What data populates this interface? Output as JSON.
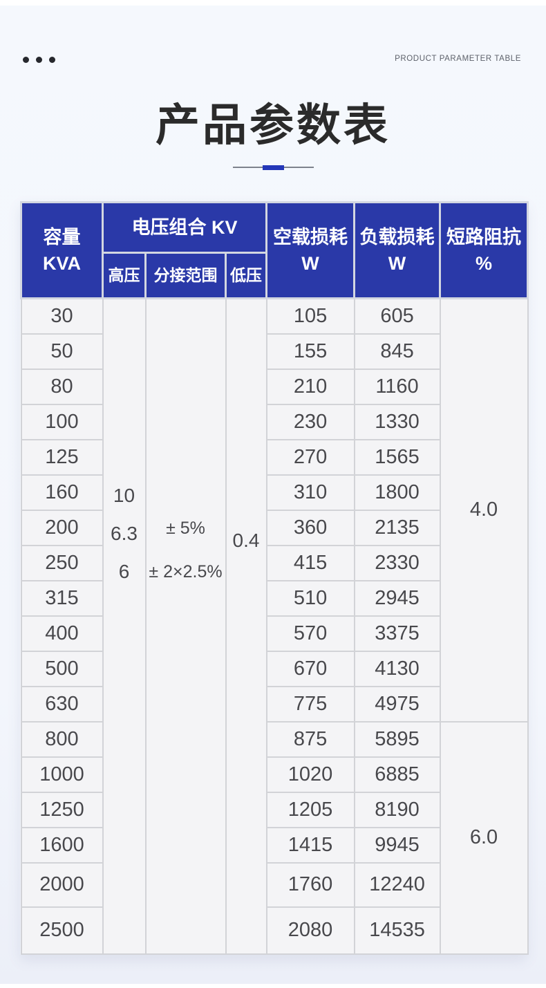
{
  "page": {
    "eyebrow": "PRODUCT PARAMETER TABLE",
    "title": "产品参数表",
    "colors": {
      "header_blue": "#2a39a8",
      "divider_blue": "#2437b8",
      "divider_gray": "#7d828c",
      "page_bg": "#f3f6fc",
      "cell_bg": "#f4f4f6"
    }
  },
  "table": {
    "header": {
      "capacity_label": "容量",
      "capacity_unit": "KVA",
      "voltage_group_label": "电压组合 KV",
      "hv_label": "高压",
      "tap_label": "分接范围",
      "lv_label": "低压",
      "no_load_label": "空载损耗",
      "no_load_unit": "W",
      "load_label": "负载损耗",
      "load_unit": "W",
      "impedance_label": "短路阻抗",
      "impedance_unit": "%"
    },
    "shared": {
      "hv_values": [
        "10",
        "6.3",
        "6"
      ],
      "tap_values": [
        "± 5%",
        "± 2×2.5%"
      ],
      "lv_value": "0.4"
    },
    "groups": [
      {
        "impedance": "4.0",
        "rows": [
          {
            "kva": "30",
            "no_load": "105",
            "load": "605"
          },
          {
            "kva": "50",
            "no_load": "155",
            "load": "845"
          },
          {
            "kva": "80",
            "no_load": "210",
            "load": "1160"
          },
          {
            "kva": "100",
            "no_load": "230",
            "load": "1330"
          },
          {
            "kva": "125",
            "no_load": "270",
            "load": "1565"
          },
          {
            "kva": "160",
            "no_load": "310",
            "load": "1800"
          },
          {
            "kva": "200",
            "no_load": "360",
            "load": "2135"
          },
          {
            "kva": "250",
            "no_load": "415",
            "load": "2330"
          },
          {
            "kva": "315",
            "no_load": "510",
            "load": "2945"
          },
          {
            "kva": "400",
            "no_load": "570",
            "load": "3375"
          },
          {
            "kva": "500",
            "no_load": "670",
            "load": "4130"
          },
          {
            "kva": "630",
            "no_load": "775",
            "load": "4975"
          }
        ]
      },
      {
        "impedance": "6.0",
        "rows": [
          {
            "kva": "800",
            "no_load": "875",
            "load": "5895"
          },
          {
            "kva": "1000",
            "no_load": "1020",
            "load": "6885"
          },
          {
            "kva": "1250",
            "no_load": "1205",
            "load": "8190"
          },
          {
            "kva": "1600",
            "no_load": "1415",
            "load": "9945"
          },
          {
            "kva": "2000",
            "no_load": "1760",
            "load": "12240"
          },
          {
            "kva": "2500",
            "no_load": "2080",
            "load": "14535"
          }
        ]
      }
    ]
  }
}
